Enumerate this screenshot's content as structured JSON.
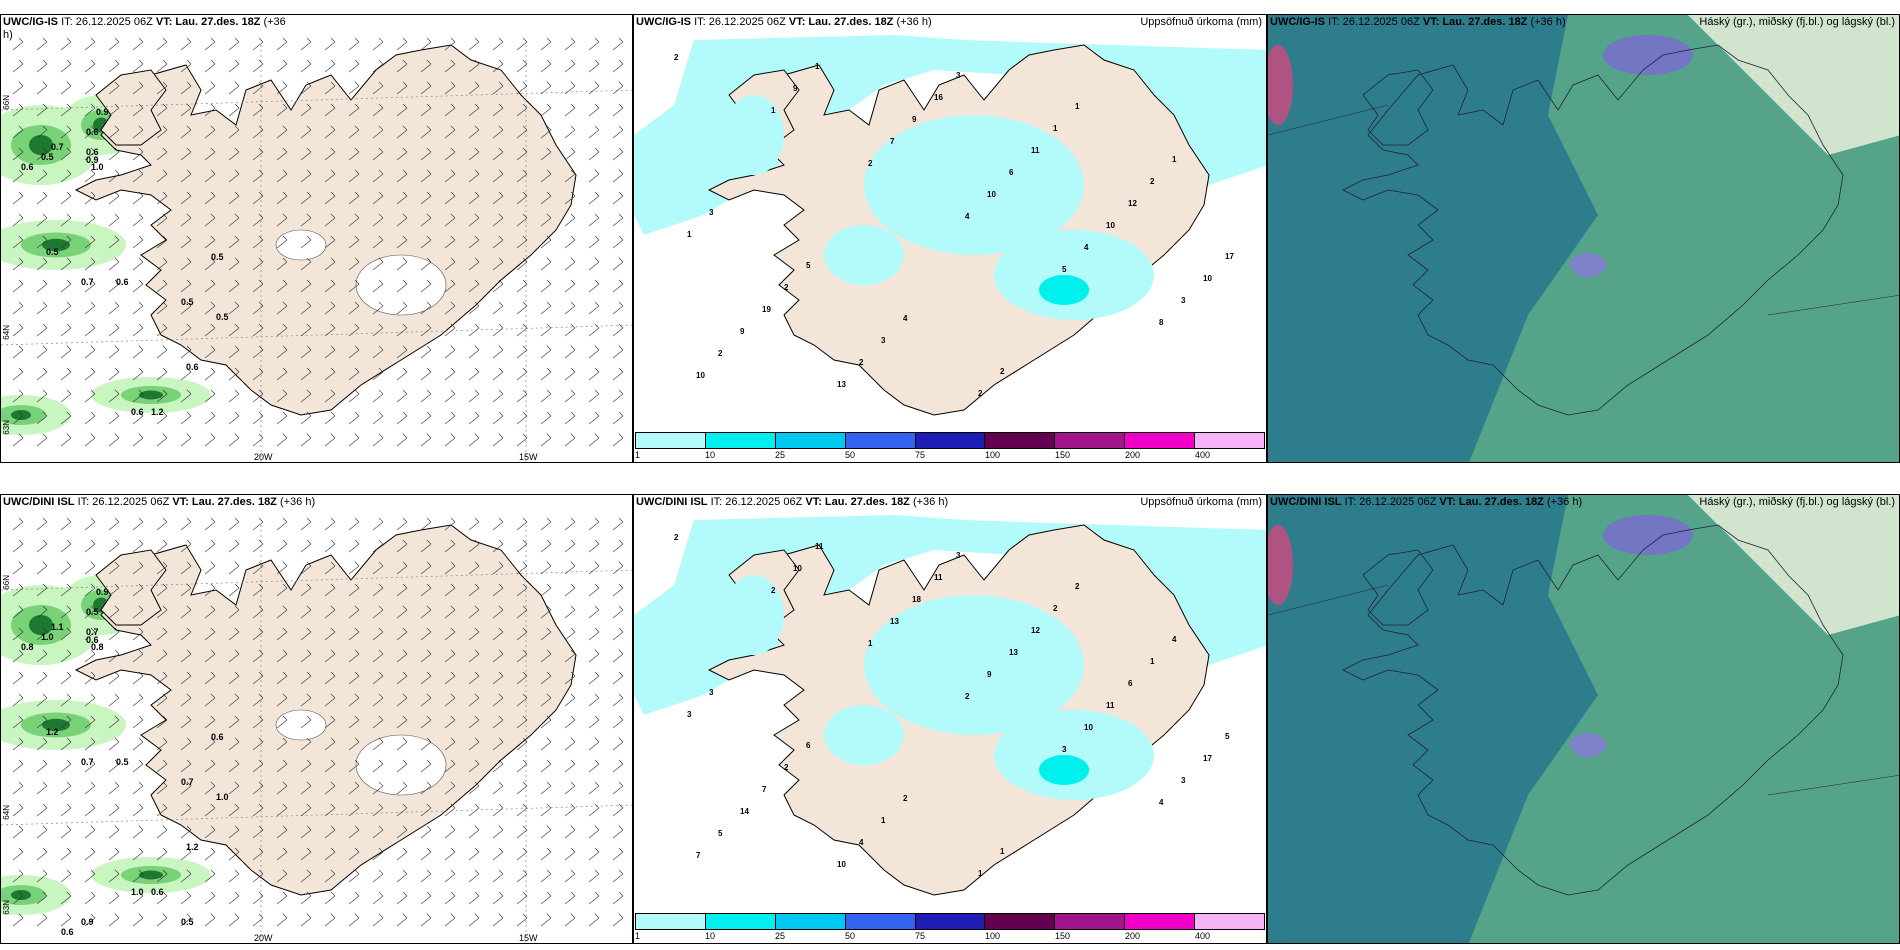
{
  "rows": [
    {
      "wind_panel": {
        "title_model": "UWC/IG-IS",
        "title_init": "IT: 26.12.2025 06Z",
        "title_vt_label": "VT:",
        "title_vt": "Lau. 27.des. 18Z",
        "title_lead": "(+36",
        "title_lead_cont": "h)",
        "lon_labels": [
          "20W",
          "15W"
        ],
        "lat_labels": [
          "66N",
          "64N",
          "63N"
        ],
        "contour_values": [
          "0.9",
          "0.6",
          "0.7",
          "0.6",
          "0.5",
          "0.9",
          "1.0",
          "0.6",
          "0.5",
          "0.7",
          "0.6",
          "0.5",
          "0.5",
          "0.5",
          "0.6",
          "0.6",
          "1.2"
        ]
      },
      "precip_panel": {
        "title_model": "UWC/IG-IS",
        "title_init": "IT: 26.12.2025 06Z",
        "title_vt_label": "VT:",
        "title_vt": "Lau. 27.des. 18Z",
        "title_lead": "(+36 h)",
        "right_label": "Uppsöfnuð úrkoma (mm)",
        "station_values": [
          "2",
          "1",
          "2",
          "4",
          "5",
          "8",
          "10",
          "9",
          "7",
          "10",
          "4",
          "3",
          "2",
          "1",
          "9",
          "6",
          "10",
          "10",
          "9",
          "13",
          "16",
          "11",
          "12",
          "17",
          "19",
          "2",
          "3",
          "1",
          "2",
          "1",
          "2",
          "3",
          "2",
          "1",
          "1",
          "3",
          "5",
          "4",
          "2"
        ]
      },
      "cloud_panel": {
        "title_model": "UWC/IG-IS",
        "title_init": "IT: 26.12.2025 06Z",
        "title_vt_label": "VT:",
        "title_vt": "Lau. 27.des. 18Z",
        "title_lead": "(+36 h)",
        "right_label": "Háský (gr.), miðský (fj.bl.) og lágský (bl.)"
      }
    },
    {
      "wind_panel": {
        "title_model": "UWC/DINI ISL",
        "title_init": "IT: 26.12.2025 06Z",
        "title_vt_label": "VT:",
        "title_vt": "Lau. 27.des. 18Z",
        "title_lead": "(+36 h)",
        "title_lead_cont": "",
        "lon_labels": [
          "20W",
          "15W"
        ],
        "lat_labels": [
          "66N",
          "64N",
          "63N"
        ],
        "contour_values": [
          "0.9",
          "0.5",
          "1.1",
          "0.7",
          "1.0",
          "0.6",
          "0.8",
          "0.8",
          "1.2",
          "0.7",
          "0.5",
          "0.6",
          "0.7",
          "1.0",
          "1.2",
          "1.0",
          "0.6",
          "0.5",
          "0.6",
          "0.9"
        ]
      },
      "precip_panel": {
        "title_model": "UWC/DINI ISL",
        "title_init": "IT: 26.12.2025 06Z",
        "title_vt_label": "VT:",
        "title_vt": "Lau. 27.des. 18Z",
        "title_lead": "(+36 h)",
        "right_label": "Uppsöfnuð úrkoma (mm)",
        "station_values": [
          "2",
          "2",
          "1",
          "2",
          "3",
          "4",
          "7",
          "10",
          "13",
          "9",
          "10",
          "3",
          "5",
          "11",
          "18",
          "13",
          "11",
          "17",
          "14",
          "10",
          "11",
          "12",
          "6",
          "5",
          "7",
          "4",
          "3",
          "2",
          "1",
          "3",
          "2",
          "1",
          "1",
          "2",
          "4",
          "3",
          "6",
          "2",
          "1"
        ]
      },
      "cloud_panel": {
        "title_model": "UWC/DINI ISL",
        "title_init": "IT: 26.12.2025 06Z",
        "title_vt_label": "VT:",
        "title_vt": "Lau. 27.des. 18Z",
        "title_lead": "(+36 h)",
        "right_label": "Háský (gr.), miðský (fj.bl.) og lágský (bl.)"
      }
    }
  ],
  "colorbar": {
    "colors": [
      "#b3fbfb",
      "#00f0f0",
      "#00c8f0",
      "#3264f0",
      "#1e1eb4",
      "#640050",
      "#a0148c",
      "#f000c8",
      "#f5b4f5"
    ],
    "ticks": [
      "1",
      "10",
      "25",
      "50",
      "75",
      "100",
      "150",
      "200",
      "400"
    ]
  },
  "colors": {
    "land": "#f3e6d8",
    "precip_light": "#b3fbfb",
    "precip_mid": "#00f0f0",
    "wind_green_light": "#c8f5c0",
    "wind_green_mid": "#78d278",
    "wind_green_dark": "#1e7832",
    "cloud_low": "#2e7d8c",
    "cloud_mid": "#5aa88a",
    "cloud_high": "#e8f0d8"
  }
}
